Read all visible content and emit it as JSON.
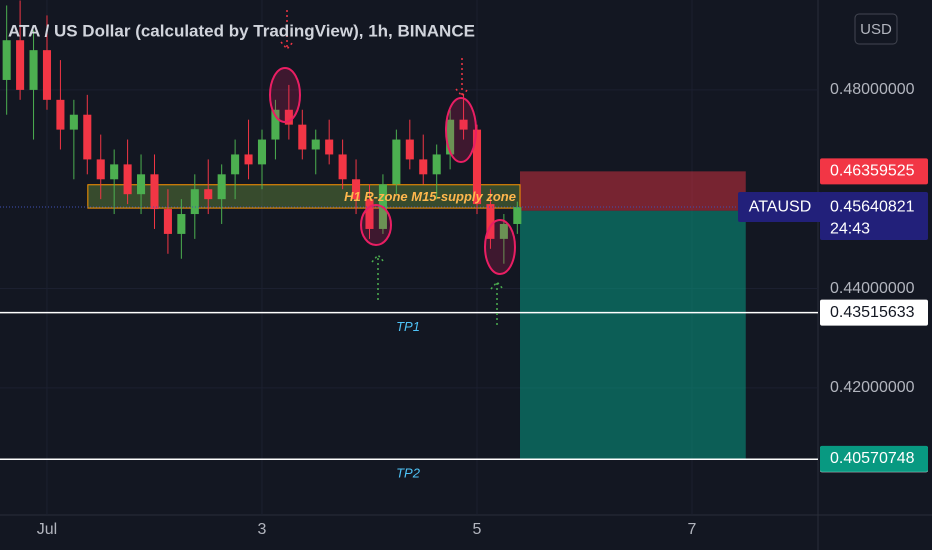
{
  "chart_data": {
    "type": "candlestick",
    "title": "ATA / US Dollar (calculated by TradingView), 1h, BINANCE",
    "currency": "USD",
    "x": [
      0.625,
      0.75,
      0.875,
      1.0,
      1.125,
      1.25,
      1.375,
      1.5,
      1.625,
      1.75,
      1.875,
      2.0,
      2.125,
      2.25,
      2.375,
      2.5,
      2.625,
      2.75,
      2.875,
      3.0,
      3.125,
      3.25,
      3.375,
      3.5,
      3.625,
      3.75,
      3.875,
      4.0,
      4.125,
      4.25,
      4.375,
      4.5,
      4.625,
      4.75,
      4.875,
      5.0,
      5.125,
      5.25,
      5.375
    ],
    "open": [
      0.482,
      0.49,
      0.48,
      0.488,
      0.478,
      0.472,
      0.475,
      0.466,
      0.462,
      0.465,
      0.459,
      0.463,
      0.456,
      0.451,
      0.455,
      0.46,
      0.458,
      0.463,
      0.467,
      0.465,
      0.47,
      0.476,
      0.473,
      0.468,
      0.47,
      0.467,
      0.462,
      0.458,
      0.452,
      0.461,
      0.47,
      0.466,
      0.463,
      0.467,
      0.474,
      0.472,
      0.457,
      0.45,
      0.453
    ],
    "high": [
      0.497,
      0.498,
      0.492,
      0.495,
      0.486,
      0.478,
      0.479,
      0.471,
      0.468,
      0.47,
      0.467,
      0.467,
      0.46,
      0.458,
      0.463,
      0.466,
      0.465,
      0.47,
      0.474,
      0.472,
      0.478,
      0.481,
      0.476,
      0.472,
      0.474,
      0.47,
      0.466,
      0.461,
      0.463,
      0.472,
      0.474,
      0.471,
      0.469,
      0.476,
      0.479,
      0.473,
      0.46,
      0.455,
      0.4575
    ],
    "low": [
      0.475,
      0.478,
      0.47,
      0.476,
      0.468,
      0.462,
      0.463,
      0.458,
      0.455,
      0.457,
      0.455,
      0.452,
      0.447,
      0.446,
      0.45,
      0.455,
      0.453,
      0.458,
      0.462,
      0.46,
      0.466,
      0.47,
      0.466,
      0.463,
      0.465,
      0.46,
      0.455,
      0.45,
      0.451,
      0.459,
      0.464,
      0.461,
      0.458,
      0.464,
      0.47,
      0.455,
      0.448,
      0.445,
      0.451
    ],
    "close": [
      0.49,
      0.48,
      0.488,
      0.478,
      0.472,
      0.475,
      0.466,
      0.462,
      0.465,
      0.459,
      0.463,
      0.456,
      0.451,
      0.455,
      0.46,
      0.458,
      0.463,
      0.467,
      0.465,
      0.47,
      0.476,
      0.473,
      0.468,
      0.47,
      0.467,
      0.462,
      0.458,
      0.452,
      0.461,
      0.47,
      0.466,
      0.463,
      0.467,
      0.474,
      0.472,
      0.457,
      0.45,
      0.453,
      0.4564
    ],
    "up_color": "#4caf50",
    "down_color": "#f23645",
    "xlim": [
      0.563,
      8.172
    ],
    "xticks": [
      {
        "value": 1,
        "label": "Jul"
      },
      3,
      5,
      7
    ],
    "ylim": [
      0.3944,
      0.4981
    ],
    "yticks": [
      {
        "value": 0.48,
        "label": "0.48000000"
      },
      {
        "value": 0.44,
        "label": "0.44000000"
      },
      {
        "value": 0.42,
        "label": "0.42000000"
      }
    ],
    "zone": {
      "label": "H1 R-zone M15-supply zone",
      "low": 0.4562,
      "high": 0.4609,
      "start": 1.38,
      "end": 5.4
    },
    "levels": [
      {
        "name": "TP1",
        "value": 0.43515633
      },
      {
        "name": "TP2",
        "value": 0.40563477
      }
    ],
    "position": {
      "stop": 0.46359525,
      "entry": 0.45565772,
      "target": 0.40570748,
      "start": 5.4,
      "end": 7.5
    },
    "last_price": {
      "symbol": "ATAUSD",
      "value": 0.45640821,
      "countdown": "24:43"
    }
  }
}
